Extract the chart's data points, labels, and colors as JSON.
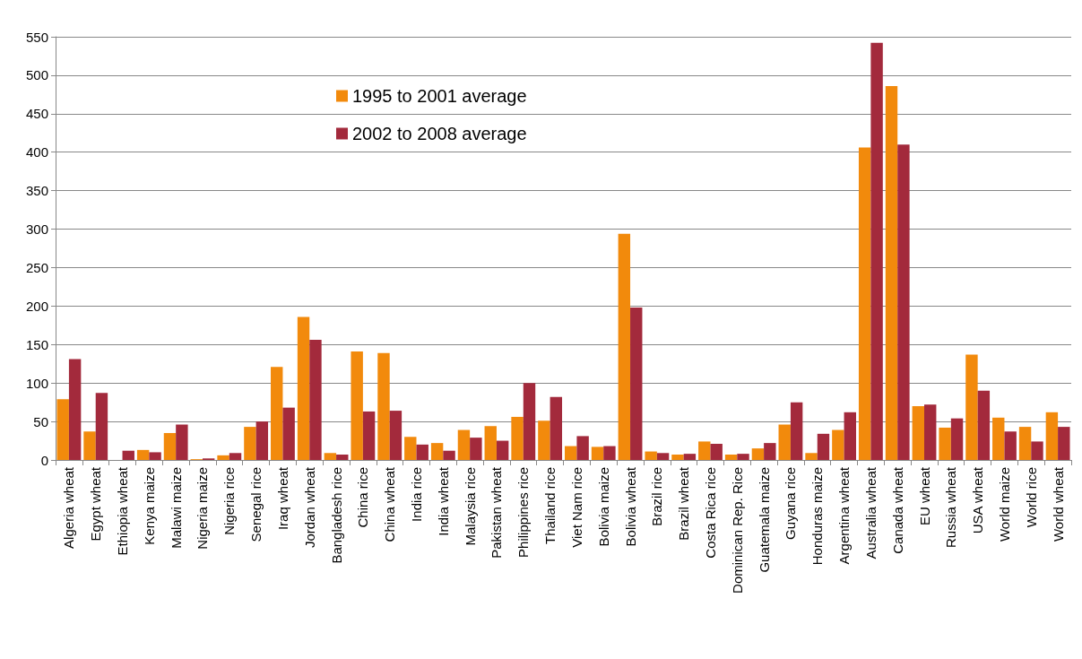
{
  "chart_data": {
    "type": "bar",
    "categories": [
      "Algeria wheat",
      "Egypt wheat",
      "Ethiopia wheat",
      "Kenya maize",
      "Malawi maize",
      "Nigeria maize",
      "Nigeria rice",
      "Senegal rice",
      "Iraq wheat",
      "Jordan wheat",
      "Bangladesh rice",
      "China rice",
      "China wheat",
      "India rice",
      "India wheat",
      "Malaysia rice",
      "Pakistan wheat",
      "Philippines rice",
      "Thailand rice",
      "Viet Nam rice",
      "Bolivia maize",
      "Bolivia wheat",
      "Brazil rice",
      "Brazil wheat",
      "Costa Rica rice",
      "Dominican Rep. Rice",
      "Guatemala maize",
      "Guyana rice",
      "Honduras maize",
      "Argentina wheat",
      "Australia wheat",
      "Canada wheat",
      "EU wheat",
      "Russia wheat",
      "USA wheat",
      "World maize",
      "World rice",
      "World wheat"
    ],
    "series": [
      {
        "name": "1995 to 2001 average",
        "color": "#f28a0c",
        "values": [
          79,
          37,
          0,
          13,
          35,
          1,
          6,
          43,
          121,
          186,
          9,
          141,
          139,
          30,
          22,
          39,
          44,
          56,
          51,
          18,
          17,
          294,
          11,
          7,
          24,
          7,
          15,
          46,
          9,
          39,
          406,
          486,
          70,
          42,
          137,
          55,
          43,
          62
        ]
      },
      {
        "name": "2002 to 2008 average",
        "color": "#a32a3c",
        "values": [
          131,
          87,
          12,
          10,
          46,
          2,
          9,
          50,
          68,
          156,
          7,
          63,
          64,
          20,
          12,
          29,
          25,
          100,
          82,
          31,
          18,
          198,
          9,
          8,
          21,
          8,
          22,
          75,
          34,
          62,
          542,
          410,
          72,
          54,
          90,
          37,
          24,
          43
        ]
      }
    ],
    "ylim": [
      0,
      550
    ],
    "yticks": [
      0,
      50,
      100,
      150,
      200,
      250,
      300,
      350,
      400,
      450,
      500,
      550
    ],
    "grid": "y",
    "legend": "top"
  }
}
